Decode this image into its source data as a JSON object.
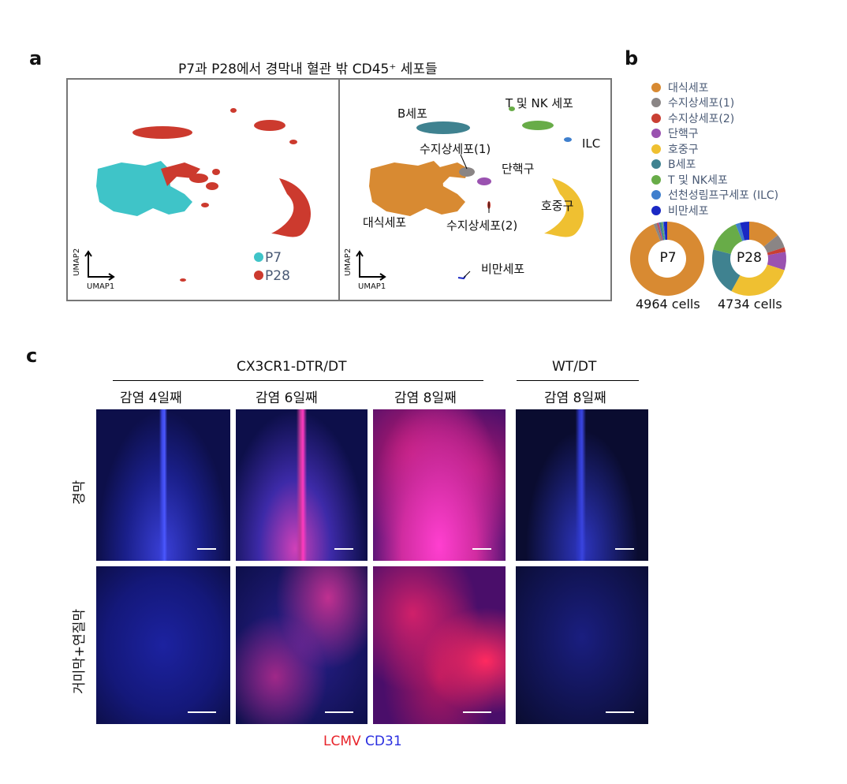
{
  "panel_a": {
    "letter": "a",
    "title": "P7과 P28에서 경막내 혈관 밖 CD45⁺ 세포들",
    "axis_y": "UMAP2",
    "axis_x": "UMAP1",
    "legend": [
      {
        "label": "P7",
        "color": "#3fc4c8"
      },
      {
        "label": "P28",
        "color": "#cc3a2e"
      }
    ],
    "cluster_labels": {
      "b_cell": "B세포",
      "t_nk": "T 및 NK 세포",
      "ilc": "ILC",
      "dc1": "수지상세포(1)",
      "mono": "단핵구",
      "macro": "대식세포",
      "dc2": "수지상세포(2)",
      "neut": "호중구",
      "mast": "비만세포"
    }
  },
  "panel_b": {
    "letter": "b",
    "legend": [
      {
        "label": "대식세포",
        "color": "#d88a32"
      },
      {
        "label": "수지상세포(1)",
        "color": "#8a8585"
      },
      {
        "label": "수지상세포(2)",
        "color": "#c93f33"
      },
      {
        "label": "단핵구",
        "color": "#9a52b0"
      },
      {
        "label": "호중구",
        "color": "#efc031"
      },
      {
        "label": "B세포",
        "color": "#3f8290"
      },
      {
        "label": "T 및 NK세포",
        "color": "#68ac48"
      },
      {
        "label": "선천성림프구세포 (ILC)",
        "color": "#3f7fcd"
      },
      {
        "label": "비만세포",
        "color": "#1a28c4"
      }
    ],
    "donuts": [
      {
        "center": "P7",
        "caption": "4964 cells",
        "fractions": [
          0.94,
          0.015,
          0.005,
          0.005,
          0.0,
          0.01,
          0.005,
          0.005,
          0.015
        ]
      },
      {
        "center": "P28",
        "caption": "4734 cells",
        "fractions": [
          0.14,
          0.06,
          0.02,
          0.08,
          0.28,
          0.21,
          0.15,
          0.02,
          0.04
        ]
      }
    ]
  },
  "panel_c": {
    "letter": "c",
    "group1": "CX3CR1-DTR/DT",
    "group2": "WT/DT",
    "columns": [
      "감염 4일째",
      "감염 6일째",
      "감염 8일째",
      "감염 8일째"
    ],
    "rows": [
      "경막",
      "거미막+연질막"
    ],
    "stain_red": "LCMV",
    "stain_blue": "CD31"
  }
}
